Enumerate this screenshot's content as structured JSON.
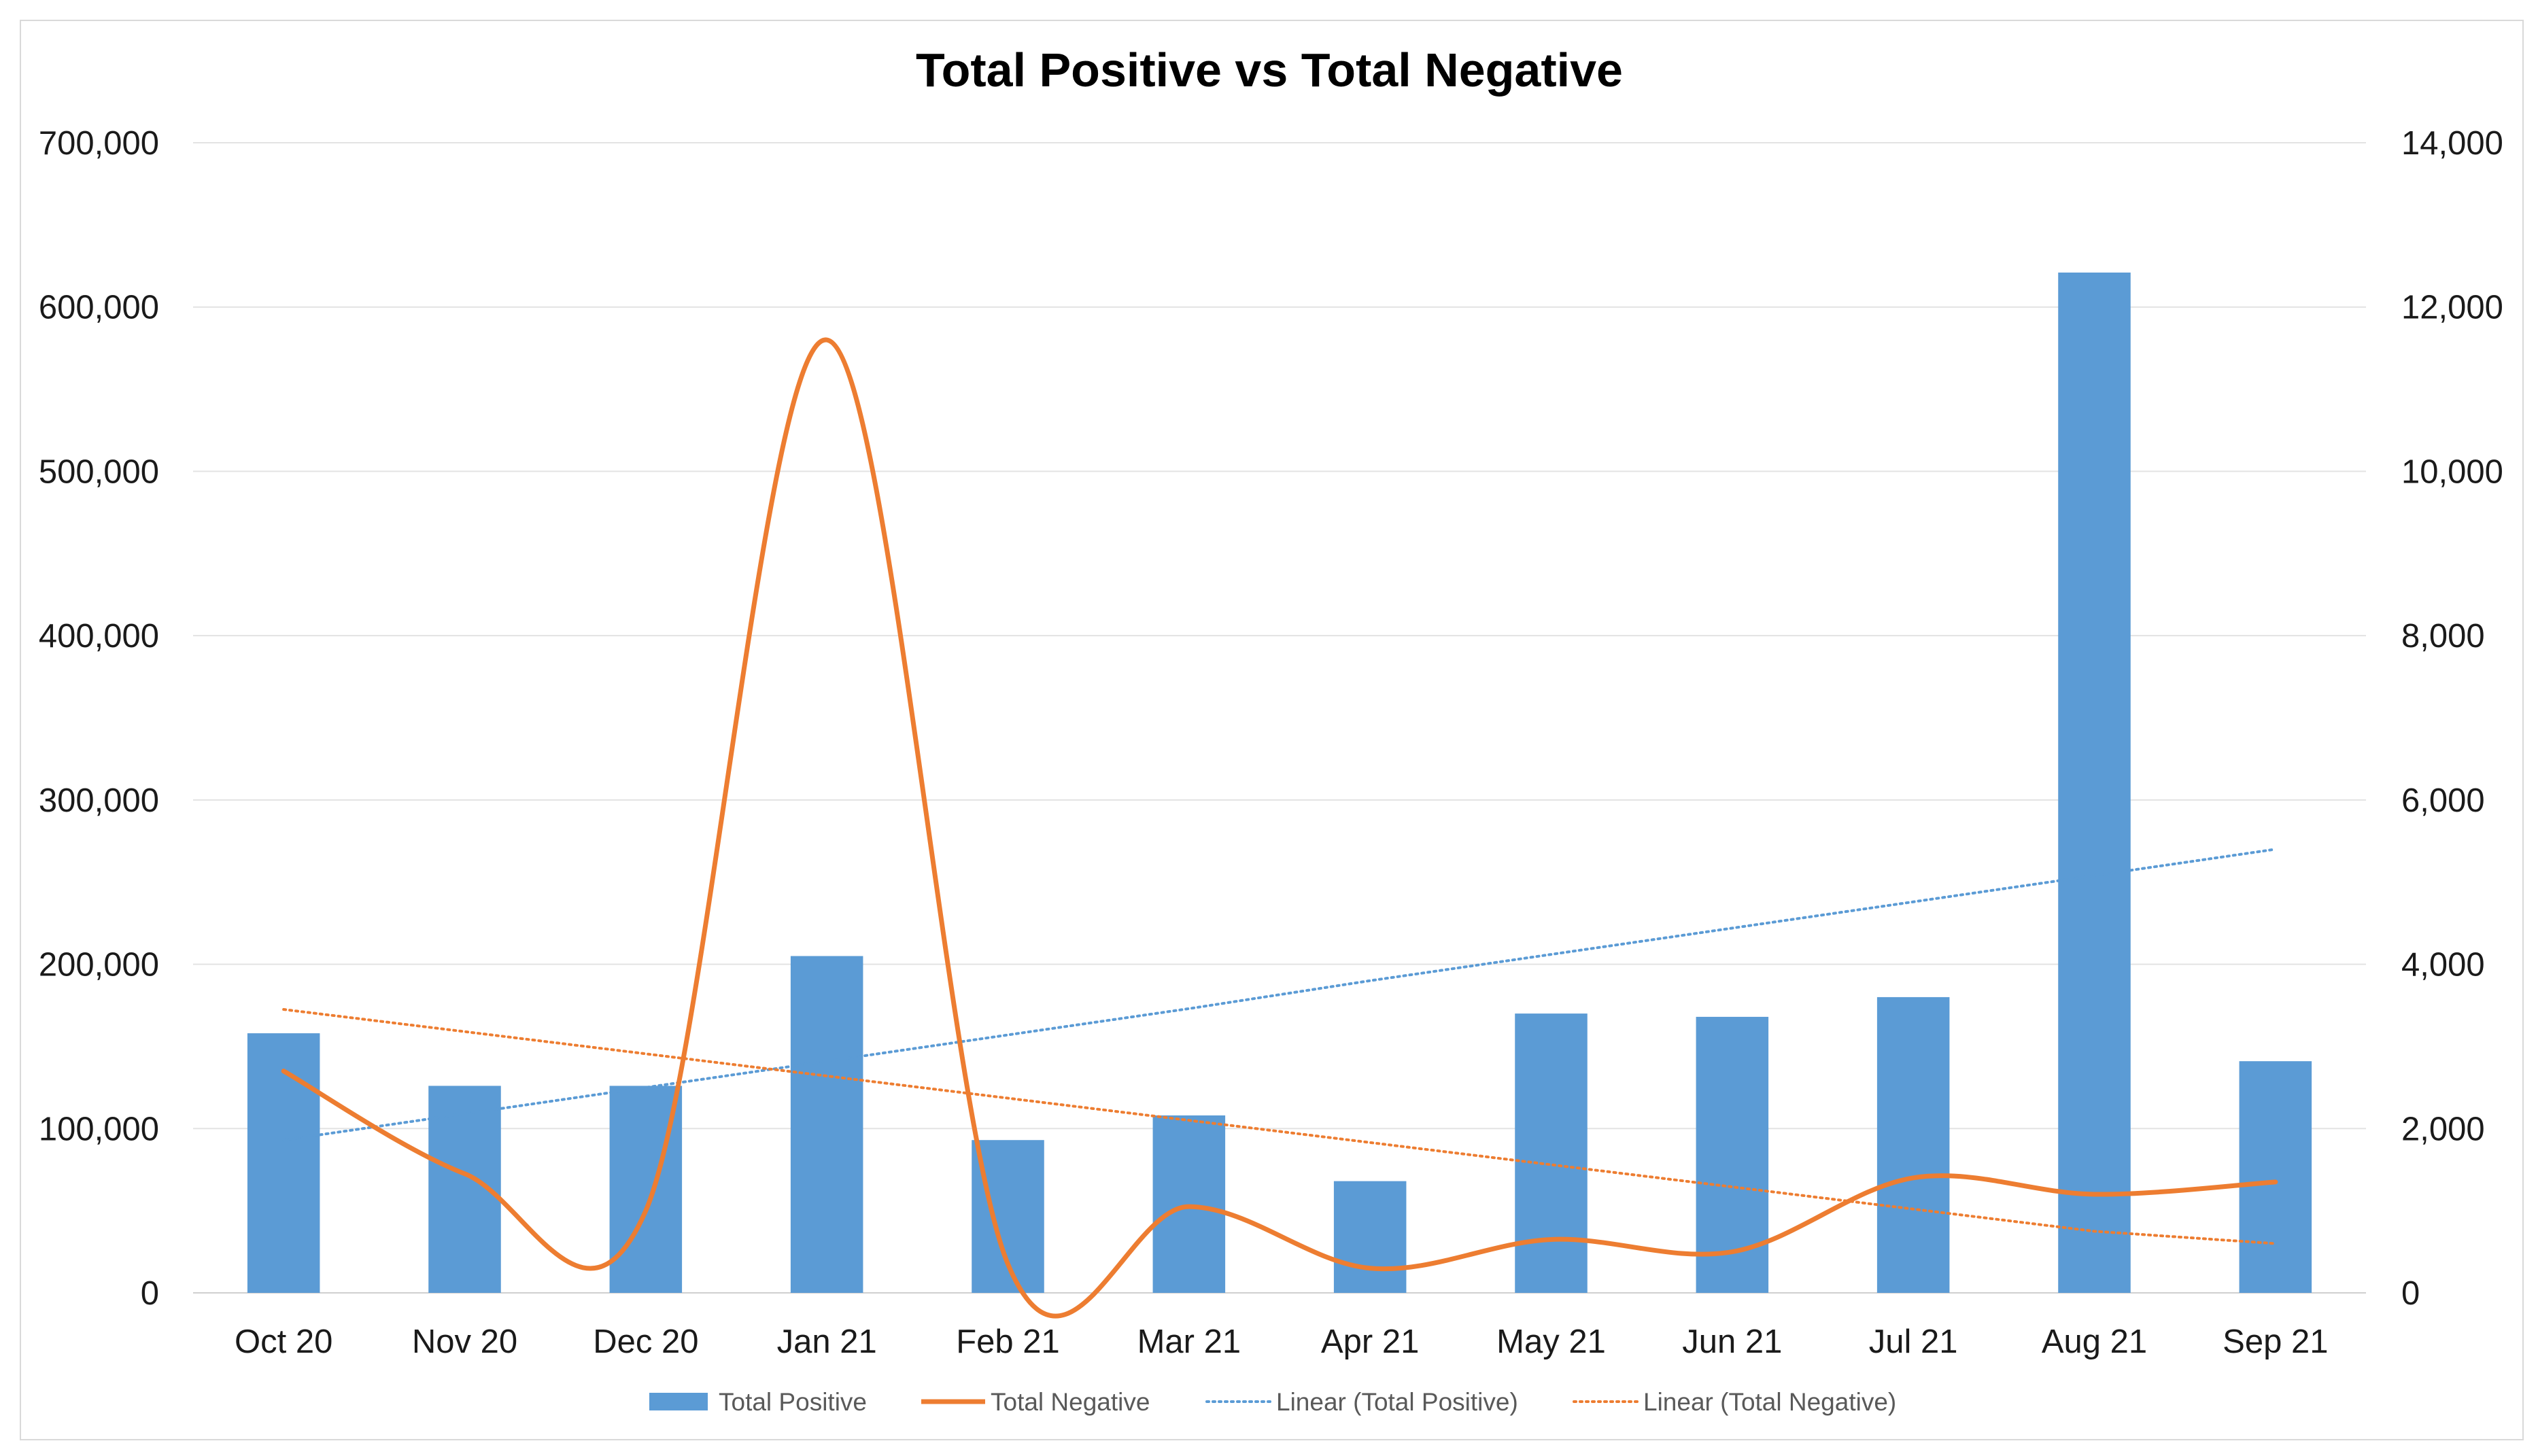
{
  "chart_data": {
    "type": "bar",
    "title": "Total Positive vs Total Negative",
    "categories": [
      "Oct 20",
      "Nov 20",
      "Dec 20",
      "Jan 21",
      "Feb 21",
      "Mar 21",
      "Apr 21",
      "May 21",
      "Jun 21",
      "Jul 21",
      "Aug 21",
      "Sep 21"
    ],
    "series": [
      {
        "name": "Total Positive",
        "type": "bar",
        "axis": "left",
        "color": "#5b9bd5",
        "values": [
          158000,
          126000,
          126000,
          205000,
          93000,
          108000,
          68000,
          170000,
          168000,
          180000,
          621000,
          141000
        ]
      },
      {
        "name": "Total Negative",
        "type": "line",
        "smooth": true,
        "axis": "right",
        "color": "#ed7d31",
        "values": [
          2700,
          1450,
          1000,
          11600,
          350,
          1050,
          300,
          650,
          500,
          1400,
          1200,
          1350
        ]
      },
      {
        "name": "Linear (Total Positive)",
        "type": "trendline",
        "axis": "left",
        "color": "#5b9bd5",
        "dash": "dotted",
        "values": [
          93000,
          109000,
          125000,
          141000,
          157000,
          173000,
          190000,
          206000,
          222000,
          238000,
          254000,
          270000
        ]
      },
      {
        "name": "Linear (Total Negative)",
        "type": "trendline",
        "axis": "right",
        "color": "#ed7d31",
        "dash": "dotted",
        "values": [
          3450,
          3180,
          2910,
          2640,
          2370,
          2100,
          1830,
          1560,
          1290,
          1020,
          750,
          600
        ]
      }
    ],
    "y_left": {
      "min": 0,
      "max": 700000,
      "ticks": [
        "0",
        "100,000",
        "200,000",
        "300,000",
        "400,000",
        "500,000",
        "600,000",
        "700,000"
      ]
    },
    "y_right": {
      "min": 0,
      "max": 14000,
      "ticks": [
        "0",
        "2,000",
        "4,000",
        "6,000",
        "8,000",
        "10,000",
        "12,000",
        "14,000"
      ]
    },
    "grid": true,
    "legend_position": "bottom"
  }
}
